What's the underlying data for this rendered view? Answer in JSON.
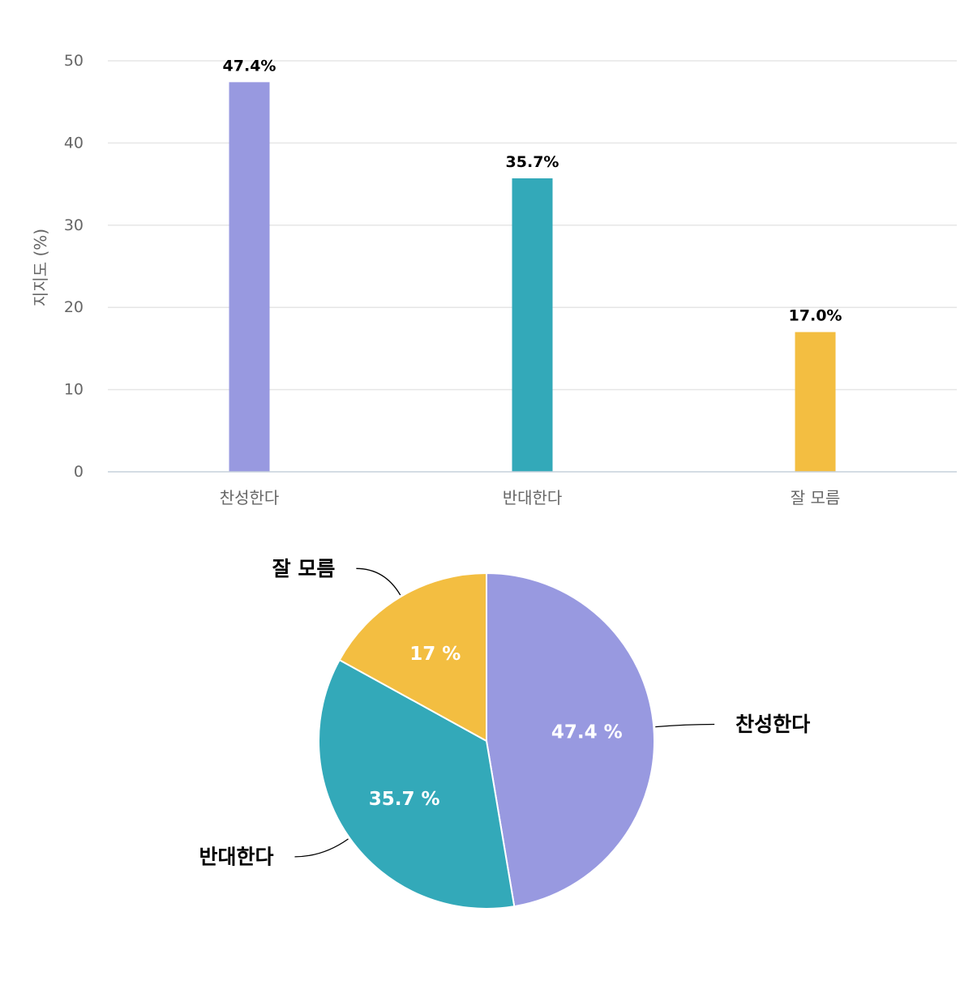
{
  "chart_data": [
    {
      "type": "bar",
      "title": "",
      "xlabel": "",
      "ylabel": "지지도 (%)",
      "ylim": [
        0,
        50
      ],
      "yticks": [
        0,
        10,
        20,
        30,
        40,
        50
      ],
      "categories": [
        "찬성한다",
        "반대한다",
        "잘 모름"
      ],
      "values": [
        47.4,
        35.7,
        17.0
      ],
      "value_labels": [
        "47.4%",
        "35.7%",
        "17.0%"
      ],
      "colors": [
        "#9899e0",
        "#33a9b9",
        "#f3be41"
      ],
      "grid": true,
      "legend": "none"
    },
    {
      "type": "pie",
      "title": "",
      "categories": [
        "찬성한다",
        "반대한다",
        "잘 모름"
      ],
      "values": [
        47.4,
        35.7,
        17.0
      ],
      "value_labels": [
        "47.4 %",
        "35.7 %",
        "17 %"
      ],
      "colors": [
        "#9899e0",
        "#33a9b9",
        "#f3be41"
      ],
      "start_angle": "12 o'clock, clockwise",
      "legend": "none"
    }
  ]
}
